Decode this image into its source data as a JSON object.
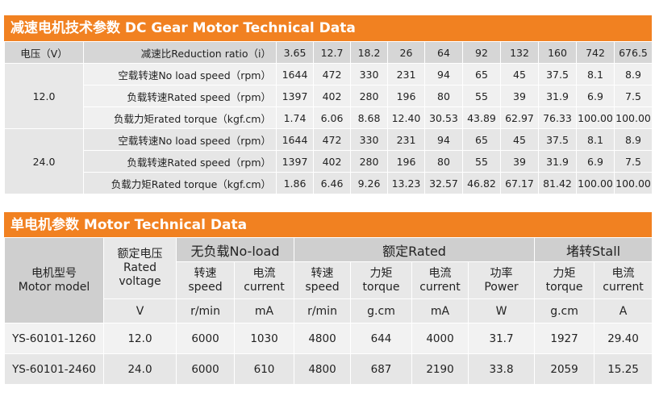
{
  "section1": {
    "title": "减速电机技术参数 DC Gear Motor Technical Data",
    "ratio_row": {
      "voltage_header": "电压（V）",
      "label": "减速比Reduction ratio（i）",
      "values": [
        "3.65",
        "12.7",
        "18.2",
        "26",
        "64",
        "92",
        "132",
        "160",
        "742",
        "676.5"
      ]
    },
    "groups": [
      {
        "voltage": "12.0",
        "rows": [
          {
            "label": "空载转速No load speed（rpm）",
            "values": [
              "1644",
              "472",
              "330",
              "231",
              "94",
              "65",
              "45",
              "37.5",
              "8.1",
              "8.9"
            ]
          },
          {
            "label": "负载转速Rated speed（rpm）",
            "values": [
              "1397",
              "402",
              "280",
              "196",
              "80",
              "55",
              "39",
              "31.9",
              "6.9",
              "7.5"
            ]
          },
          {
            "label": "负载力矩rated torque（kgf.cm）",
            "values": [
              "1.74",
              "6.06",
              "8.68",
              "12.40",
              "30.53",
              "43.89",
              "62.97",
              "76.33",
              "100.00",
              "100.00"
            ]
          }
        ]
      },
      {
        "voltage": "24.0",
        "rows": [
          {
            "label": "空载转速No load speed（rpm）",
            "values": [
              "1644",
              "472",
              "330",
              "231",
              "94",
              "65",
              "45",
              "37.5",
              "8.1",
              "8.9"
            ]
          },
          {
            "label": "负载转速Rated speed（rpm）",
            "values": [
              "1397",
              "402",
              "280",
              "196",
              "80",
              "55",
              "39",
              "31.9",
              "6.9",
              "7.5"
            ]
          },
          {
            "label": "负载力矩Rated torque（kgf.cm）",
            "values": [
              "1.86",
              "6.46",
              "9.26",
              "13.23",
              "32.57",
              "46.82",
              "67.17",
              "81.42",
              "100.00",
              "100.00"
            ]
          }
        ]
      }
    ]
  },
  "section2": {
    "title": "单电机参数 Motor Technical Data",
    "headers": {
      "model": "电机型号\nMotor model",
      "rated_voltage": "额定电压\nRated\nvoltage",
      "noload": "无负载No-load",
      "rated": "额定Rated",
      "stall": "堵转Stall",
      "sub": [
        "转速\nspeed",
        "电流\ncurrent",
        "转速\nspeed",
        "力矩\ntorque",
        "电流\ncurrent",
        "功率\nPower",
        "力矩\ntorque",
        "电流\ncurrent"
      ],
      "units": [
        "V",
        "r/min",
        "mA",
        "r/min",
        "g.cm",
        "mA",
        "W",
        "g.cm",
        "A"
      ]
    },
    "rows": [
      {
        "model": "YS-60101-1260",
        "values": [
          "12.0",
          "6000",
          "1030",
          "4800",
          "644",
          "4000",
          "31.7",
          "1927",
          "29.40"
        ]
      },
      {
        "model": "YS-60101-2460",
        "values": [
          "24.0",
          "6000",
          "610",
          "4800",
          "687",
          "2190",
          "33.8",
          "2059",
          "15.25"
        ]
      }
    ]
  }
}
